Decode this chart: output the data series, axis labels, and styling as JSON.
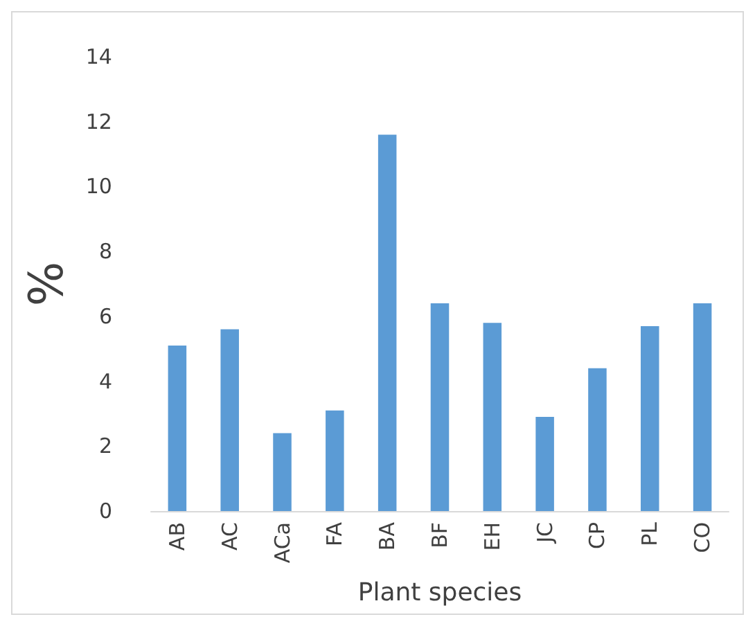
{
  "chart_data": {
    "type": "bar",
    "xlabel": "Plant species",
    "ylabel": "%",
    "categories": [
      "AB",
      "AC",
      "ACa",
      "FA",
      "BA",
      "BF",
      "EH",
      "JC",
      "CP",
      "PL",
      "CO"
    ],
    "values": [
      5.1,
      5.6,
      2.4,
      3.1,
      11.6,
      6.4,
      5.8,
      2.9,
      4.4,
      5.7,
      6.4
    ],
    "color": "#5b9bd5",
    "ylim": [
      0,
      14
    ],
    "yticks": [
      0,
      2,
      4,
      6,
      8,
      10,
      12,
      14
    ],
    "grid": false
  }
}
